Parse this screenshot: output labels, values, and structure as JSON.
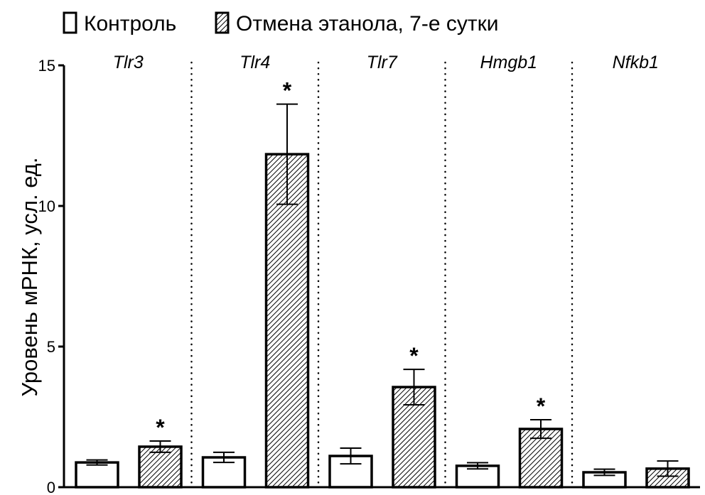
{
  "chart_data": {
    "type": "bar",
    "categories": [
      "Tlr3",
      "Tlr4",
      "Tlr7",
      "Hmgb1",
      "Nfkb1"
    ],
    "series": [
      {
        "name": "Контроль",
        "pattern": "none",
        "values": [
          0.88,
          1.06,
          1.11,
          0.76,
          0.53
        ],
        "errors": [
          0.09,
          0.18,
          0.28,
          0.11,
          0.11
        ]
      },
      {
        "name": "Отмена этанола, 7-е сутки",
        "pattern": "hatched",
        "values": [
          1.44,
          11.84,
          3.56,
          2.07,
          0.66
        ],
        "errors": [
          0.2,
          1.78,
          0.63,
          0.33,
          0.27
        ]
      }
    ],
    "significance": [
      [
        false,
        false,
        false,
        false,
        false
      ],
      [
        true,
        true,
        true,
        true,
        false
      ]
    ],
    "significance_marker": "*",
    "ylabel": "Уровень мРНК, усл. ед.",
    "ylim": [
      0,
      15
    ],
    "yticks": [
      0,
      5,
      10,
      15
    ],
    "legend_position": "top",
    "grid": false
  }
}
